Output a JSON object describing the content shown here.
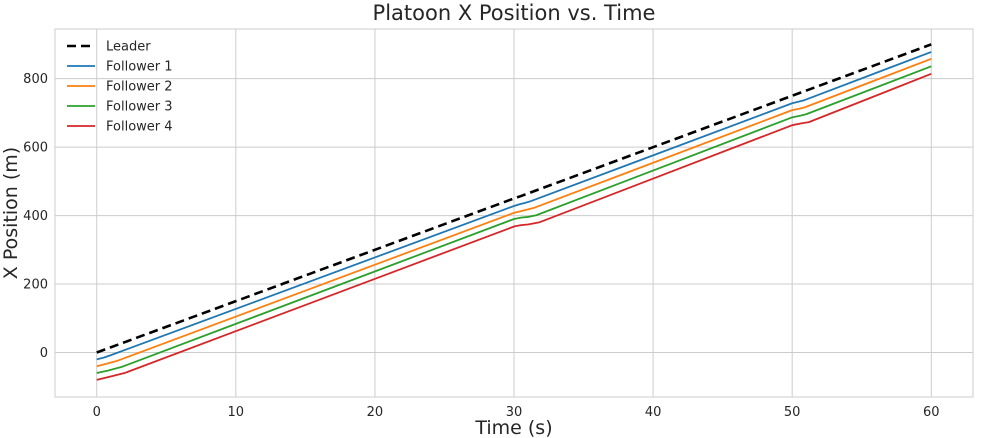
{
  "chart_data": {
    "type": "line",
    "title": "Platoon X Position vs. Time",
    "xlabel": "Time (s)",
    "ylabel": "X Position (m)",
    "xlim": [
      -3,
      63
    ],
    "ylim": [
      -130,
      945
    ],
    "xticks": [
      0,
      10,
      20,
      30,
      40,
      50,
      60
    ],
    "yticks": [
      0,
      200,
      400,
      600,
      800
    ],
    "grid": true,
    "legend_position": "top-left",
    "series": [
      {
        "name": "Leader",
        "color": "#000000",
        "dashed": true,
        "points": [
          [
            0,
            0
          ],
          [
            30,
            450
          ],
          [
            30.5,
            457
          ],
          [
            50,
            750
          ],
          [
            60,
            900
          ]
        ]
      },
      {
        "name": "Follower 1",
        "color": "#1f77b4",
        "dashed": false,
        "points": [
          [
            0,
            -20
          ],
          [
            0.5,
            -15
          ],
          [
            1,
            -8
          ],
          [
            30,
            428
          ],
          [
            30.4,
            433
          ],
          [
            30.8,
            437
          ],
          [
            31.2,
            442
          ],
          [
            50,
            728
          ],
          [
            50.4,
            732
          ],
          [
            50.8,
            736
          ],
          [
            60,
            878
          ]
        ]
      },
      {
        "name": "Follower 2",
        "color": "#ff7f0e",
        "dashed": false,
        "points": [
          [
            0,
            -40
          ],
          [
            0.7,
            -33
          ],
          [
            1.5,
            -24
          ],
          [
            30,
            408
          ],
          [
            30.5,
            413
          ],
          [
            30.9,
            417
          ],
          [
            31.4,
            422
          ],
          [
            50,
            708
          ],
          [
            50.5,
            712
          ],
          [
            50.9,
            716
          ],
          [
            60,
            858
          ]
        ]
      },
      {
        "name": "Follower 3",
        "color": "#2ca02c",
        "dashed": false,
        "points": [
          [
            0,
            -60
          ],
          [
            0.8,
            -53
          ],
          [
            1.8,
            -42
          ],
          [
            30,
            390
          ],
          [
            30.5,
            394
          ],
          [
            31,
            396
          ],
          [
            31.6,
            401
          ],
          [
            50,
            687
          ],
          [
            50.6,
            692
          ],
          [
            51,
            696
          ],
          [
            60,
            836
          ]
        ]
      },
      {
        "name": "Follower 4",
        "color": "#d62728",
        "dashed": false,
        "points": [
          [
            0,
            -80
          ],
          [
            1,
            -70
          ],
          [
            2,
            -60
          ],
          [
            30,
            368
          ],
          [
            30.5,
            372
          ],
          [
            31,
            374
          ],
          [
            31.8,
            380
          ],
          [
            50,
            664
          ],
          [
            50.6,
            669
          ],
          [
            51.2,
            673
          ],
          [
            60,
            814
          ]
        ]
      }
    ]
  }
}
